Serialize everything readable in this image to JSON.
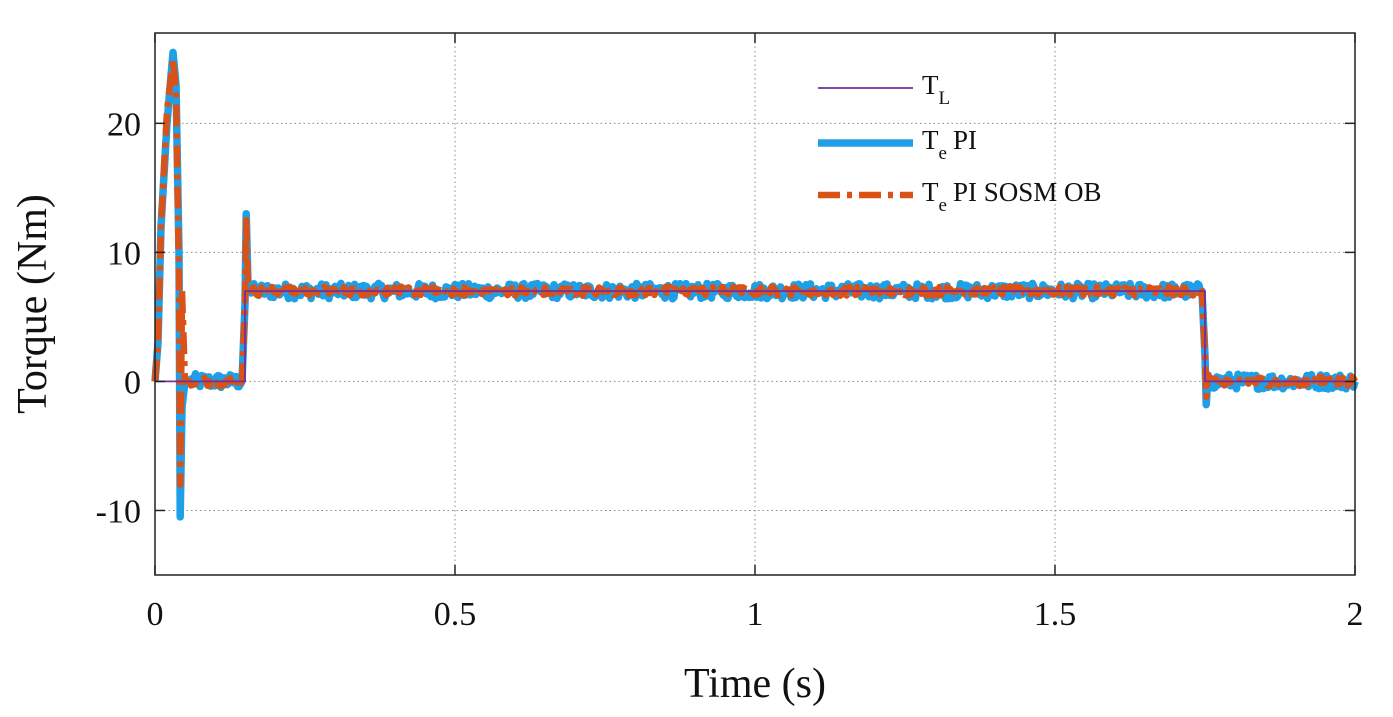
{
  "chart_data": {
    "type": "line",
    "title": "",
    "xlabel": "Time (s)",
    "ylabel": "Torque (Nm)",
    "xlim": [
      0,
      2
    ],
    "ylim": [
      -15,
      27
    ],
    "xticks": [
      0,
      0.5,
      1,
      1.5,
      2
    ],
    "xtick_labels": [
      "0",
      "0.5",
      "1",
      "1.5",
      "2"
    ],
    "yticks": [
      -10,
      0,
      10,
      20
    ],
    "ytick_labels": [
      "-10",
      "0",
      "10",
      "20"
    ],
    "grid": true,
    "legend_position": "top-right",
    "legend": [
      {
        "main": "T",
        "sub": "L",
        "rest": ""
      },
      {
        "main": "T",
        "sub": "e",
        "rest": "PI"
      },
      {
        "main": "T",
        "sub": "e",
        "rest": "PI SOSM OB"
      }
    ],
    "series": [
      {
        "name": "T_L",
        "color": "#7030A0",
        "style": "solid-thin",
        "x": [
          0,
          0.15,
          0.15,
          1.75,
          1.75,
          2
        ],
        "y": [
          0,
          0,
          7,
          7,
          0,
          0
        ]
      },
      {
        "name": "T_e PI",
        "color": "#1F9FE6",
        "style": "solid-thick",
        "x": [
          0,
          0.005,
          0.01,
          0.02,
          0.03,
          0.035,
          0.04,
          0.042,
          0.045,
          0.05,
          0.06,
          0.1,
          0.145,
          0.15,
          0.152,
          0.155,
          0.16,
          0.5,
          1,
          1.5,
          1.745,
          1.75,
          1.752,
          1.755,
          1.76,
          2
        ],
        "y": [
          0,
          3,
          12,
          20,
          25.5,
          23,
          10,
          -10.5,
          -2,
          0,
          0,
          0,
          0,
          6,
          13,
          7.5,
          7,
          7,
          7,
          7,
          7,
          2,
          -1.8,
          0.5,
          0,
          0
        ],
        "noise_amplitude": 0.6
      },
      {
        "name": "T_e PI SOSM OB",
        "color": "#D95319",
        "style": "dashdot-thick",
        "x": [
          0,
          0.005,
          0.01,
          0.02,
          0.03,
          0.035,
          0.04,
          0.042,
          0.045,
          0.05,
          0.06,
          0.1,
          0.145,
          0.15,
          0.152,
          0.155,
          0.16,
          0.5,
          1,
          1.5,
          1.745,
          1.75,
          1.752,
          1.755,
          1.76,
          2
        ],
        "y": [
          0,
          3,
          12,
          21,
          25,
          22.5,
          8,
          -8,
          7,
          0,
          0,
          0,
          0,
          6,
          12.5,
          7.5,
          7,
          7,
          7,
          7,
          7,
          2,
          -1.2,
          0.5,
          0,
          0
        ],
        "noise_amplitude": 0.35
      }
    ]
  }
}
